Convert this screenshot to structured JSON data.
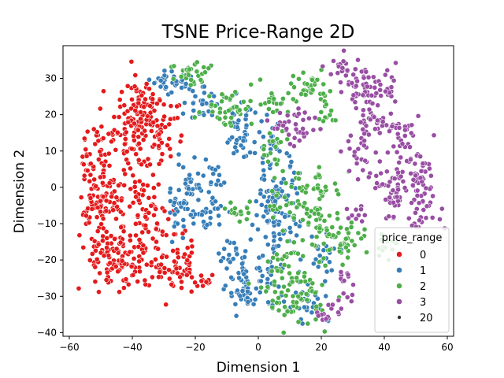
{
  "chart_data": {
    "type": "scatter",
    "title": "TSNE Price-Range 2D",
    "xlabel": "Dimension 1",
    "ylabel": "Dimension 2",
    "xlim": [
      -62,
      62
    ],
    "ylim": [
      -41,
      39
    ],
    "xticks": [
      -60,
      -40,
      -20,
      0,
      20,
      40,
      60
    ],
    "yticks": [
      -40,
      -30,
      -20,
      -10,
      0,
      10,
      20,
      30
    ],
    "legend": {
      "title": "price_range",
      "placement": "lower-right",
      "entries": [
        "0",
        "1",
        "2",
        "3"
      ],
      "size_entry": "20"
    },
    "series": [
      {
        "name": "0",
        "color": "#e41a1c",
        "clusters": [
          [
            -50,
            3,
            3.5,
            10,
            110
          ],
          [
            -42,
            -20,
            5,
            4,
            90
          ],
          [
            -38,
            18,
            3.5,
            6,
            90
          ],
          [
            -30,
            15,
            2.5,
            4,
            30
          ],
          [
            -36,
            23,
            3,
            2.5,
            30
          ],
          [
            -37,
            -2,
            3,
            6,
            55
          ],
          [
            -30,
            -22,
            2.5,
            3,
            25
          ],
          [
            -24,
            -21,
            2,
            4,
            40
          ],
          [
            -33,
            -11,
            3,
            3,
            25
          ],
          [
            -18,
            -25,
            2.5,
            1.5,
            12
          ],
          [
            -50,
            -18,
            3,
            3,
            25
          ],
          [
            -48,
            -5,
            4,
            3,
            35
          ]
        ]
      },
      {
        "name": "1",
        "color": "#377eb8",
        "clusters": [
          [
            -27,
            29,
            3.5,
            1.5,
            35
          ],
          [
            -18,
            23,
            2.5,
            3,
            25
          ],
          [
            -6,
            14,
            2.5,
            4,
            40
          ],
          [
            -22,
            0,
            3.5,
            4,
            40
          ],
          [
            -17,
            -7,
            3,
            3,
            35
          ],
          [
            -25,
            -6,
            2,
            3,
            15
          ],
          [
            -8,
            -19,
            2.5,
            2,
            20
          ],
          [
            -4,
            -29,
            3,
            2.5,
            35
          ],
          [
            -6,
            -25,
            2,
            2,
            10
          ],
          [
            5,
            -8,
            4,
            10,
            130
          ],
          [
            4,
            -25,
            2.5,
            2,
            15
          ],
          [
            3,
            14,
            2,
            2,
            10
          ],
          [
            17,
            -32,
            4,
            3,
            25
          ],
          [
            20,
            -18,
            3,
            3,
            20
          ],
          [
            -13,
            3,
            2,
            2,
            10
          ]
        ]
      },
      {
        "name": "2",
        "color": "#4daf4a",
        "clusters": [
          [
            -20,
            31,
            4,
            2.5,
            30
          ],
          [
            -10,
            22,
            4,
            2.5,
            40
          ],
          [
            4,
            24,
            3,
            2,
            20
          ],
          [
            5,
            11,
            2,
            2.5,
            20
          ],
          [
            16,
            28,
            3,
            2.5,
            35
          ],
          [
            22,
            21,
            2.5,
            2,
            15
          ],
          [
            20,
            0,
            3.5,
            2.5,
            30
          ],
          [
            18,
            -9,
            2.5,
            2,
            20
          ],
          [
            26,
            -15,
            5,
            3,
            50
          ],
          [
            12,
            -30,
            5,
            4,
            70
          ],
          [
            8,
            -20,
            3,
            3,
            25
          ],
          [
            -6,
            -7,
            2.5,
            1.5,
            15
          ],
          [
            8,
            -3,
            3,
            3,
            20
          ],
          [
            40,
            -17,
            2.5,
            2,
            15
          ],
          [
            12,
            -8,
            2,
            2,
            10
          ]
        ]
      },
      {
        "name": "3",
        "color": "#984ea3",
        "clusters": [
          [
            28,
            32,
            3,
            2,
            30
          ],
          [
            34,
            25,
            3,
            3,
            35
          ],
          [
            40,
            26,
            3,
            2.5,
            25
          ],
          [
            36,
            17,
            3,
            2.5,
            25
          ],
          [
            32,
            9,
            2.5,
            3,
            20
          ],
          [
            45,
            14,
            3,
            4,
            35
          ],
          [
            48,
            4,
            3.5,
            3,
            30
          ],
          [
            52,
            -3,
            3,
            4,
            45
          ],
          [
            44,
            -4,
            3,
            3,
            25
          ],
          [
            40,
            1,
            3,
            2,
            20
          ],
          [
            32,
            -7,
            2,
            2,
            10
          ],
          [
            13,
            17,
            3,
            3,
            25
          ],
          [
            9,
            18,
            2,
            1.5,
            10
          ],
          [
            22,
            -35,
            2.5,
            1.5,
            12
          ],
          [
            26,
            -31,
            2,
            2,
            8
          ],
          [
            29,
            -23,
            2,
            2,
            8
          ]
        ]
      }
    ]
  }
}
